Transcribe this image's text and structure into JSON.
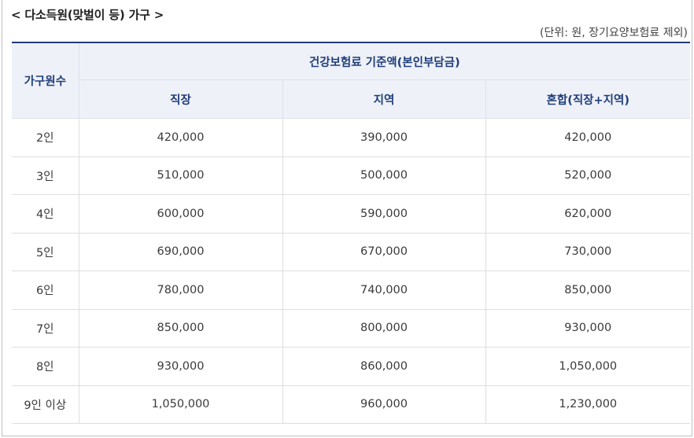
{
  "title": "< 다소득원(맞벌이 등) 가구 >",
  "unit_note": "(단위: 원, 장기요양보험료 제외)",
  "table": {
    "header_household": "가구원수",
    "header_group": "건강보험료 기준액(본인부담금)",
    "columns": [
      "직장",
      "지역",
      "혼합(직장+지역)"
    ],
    "rows": [
      [
        "2인",
        "420,000",
        "390,000",
        "420,000"
      ],
      [
        "3인",
        "510,000",
        "500,000",
        "520,000"
      ],
      [
        "4인",
        "600,000",
        "590,000",
        "620,000"
      ],
      [
        "5인",
        "690,000",
        "670,000",
        "730,000"
      ],
      [
        "6인",
        "780,000",
        "740,000",
        "850,000"
      ],
      [
        "7인",
        "850,000",
        "800,000",
        "930,000"
      ],
      [
        "8인",
        "930,000",
        "860,000",
        "1,050,000"
      ],
      [
        "9인 이상",
        "1,050,000",
        "960,000",
        "1,230,000"
      ]
    ]
  },
  "colors": {
    "header_text": "#1f3d7a",
    "header_bg": "#eef1f8",
    "top_rule": "#1f3d7a"
  }
}
